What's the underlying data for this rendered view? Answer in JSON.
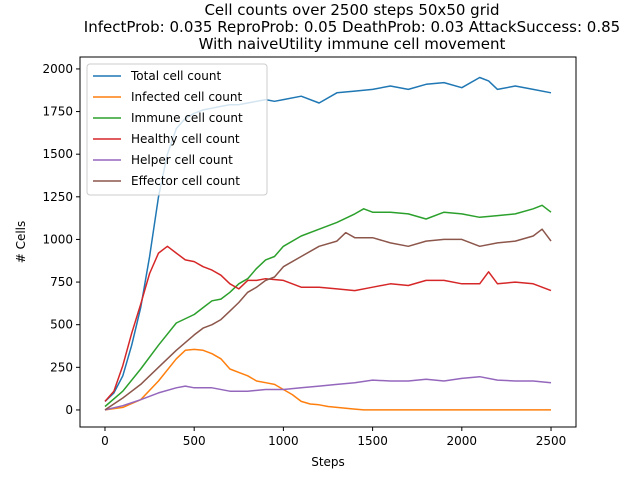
{
  "chart_data": {
    "type": "line",
    "title_lines": [
      "Cell counts over 2500 steps 50x50 grid",
      "InfectProb: 0.035 ReproProb: 0.05 DeathProb: 0.03 AttackSuccess: 0.85",
      "With naiveUtility immune cell movement"
    ],
    "xlabel": "Steps",
    "ylabel": "# Cells",
    "xlim": [
      -140,
      2640
    ],
    "ylim": [
      -100,
      2070
    ],
    "xticks": [
      0,
      500,
      1000,
      1500,
      2000,
      2500
    ],
    "yticks": [
      0,
      250,
      500,
      750,
      1000,
      1250,
      1500,
      1750,
      2000
    ],
    "grid": false,
    "legend_position": "top-left",
    "series": [
      {
        "name": "Total cell count",
        "color": "#1f77b4",
        "x": [
          0,
          50,
          100,
          150,
          200,
          250,
          300,
          350,
          400,
          450,
          500,
          550,
          600,
          650,
          700,
          750,
          800,
          850,
          900,
          950,
          1000,
          1100,
          1200,
          1300,
          1400,
          1500,
          1600,
          1700,
          1800,
          1900,
          2000,
          2100,
          2150,
          2200,
          2300,
          2400,
          2500
        ],
        "y": [
          50,
          100,
          200,
          380,
          600,
          900,
          1250,
          1500,
          1650,
          1710,
          1740,
          1760,
          1770,
          1780,
          1790,
          1790,
          1800,
          1810,
          1820,
          1810,
          1820,
          1840,
          1800,
          1860,
          1870,
          1880,
          1900,
          1880,
          1910,
          1920,
          1890,
          1950,
          1930,
          1880,
          1900,
          1880,
          1860
        ]
      },
      {
        "name": "Infected cell count",
        "color": "#ff7f0e",
        "x": [
          0,
          100,
          200,
          300,
          400,
          450,
          500,
          550,
          600,
          650,
          700,
          750,
          800,
          850,
          900,
          950,
          1000,
          1050,
          1100,
          1150,
          1200,
          1250,
          1300,
          1350,
          1400,
          1450,
          1500,
          1600,
          2000,
          2500
        ],
        "y": [
          0,
          15,
          60,
          170,
          300,
          350,
          355,
          350,
          330,
          300,
          240,
          220,
          200,
          170,
          160,
          150,
          120,
          90,
          50,
          35,
          30,
          20,
          15,
          10,
          5,
          0,
          0,
          0,
          0,
          0
        ]
      },
      {
        "name": "Immune cell count",
        "color": "#2ca02c",
        "x": [
          0,
          100,
          200,
          300,
          400,
          500,
          550,
          600,
          650,
          700,
          750,
          800,
          850,
          900,
          950,
          1000,
          1100,
          1200,
          1300,
          1400,
          1450,
          1500,
          1600,
          1700,
          1800,
          1900,
          2000,
          2100,
          2200,
          2300,
          2400,
          2450,
          2500
        ],
        "y": [
          20,
          110,
          240,
          380,
          510,
          560,
          600,
          640,
          650,
          690,
          740,
          770,
          830,
          880,
          900,
          960,
          1020,
          1060,
          1100,
          1150,
          1180,
          1160,
          1160,
          1150,
          1120,
          1160,
          1150,
          1130,
          1140,
          1150,
          1180,
          1200,
          1160
        ]
      },
      {
        "name": "Healthy cell count",
        "color": "#d62728",
        "x": [
          0,
          50,
          100,
          150,
          200,
          250,
          300,
          350,
          400,
          450,
          500,
          550,
          600,
          650,
          700,
          750,
          800,
          850,
          900,
          1000,
          1100,
          1200,
          1300,
          1400,
          1500,
          1600,
          1700,
          1800,
          1900,
          2000,
          2100,
          2150,
          2200,
          2300,
          2400,
          2450,
          2500
        ],
        "y": [
          50,
          110,
          260,
          450,
          620,
          800,
          920,
          960,
          920,
          880,
          870,
          840,
          820,
          790,
          740,
          710,
          760,
          760,
          770,
          760,
          720,
          720,
          710,
          700,
          720,
          740,
          730,
          760,
          760,
          740,
          740,
          810,
          740,
          750,
          740,
          720,
          700
        ]
      },
      {
        "name": "Helper cell count",
        "color": "#9467bd",
        "x": [
          0,
          100,
          200,
          300,
          400,
          450,
          500,
          550,
          600,
          700,
          800,
          900,
          1000,
          1100,
          1200,
          1300,
          1400,
          1500,
          1600,
          1700,
          1800,
          1900,
          2000,
          2100,
          2200,
          2300,
          2400,
          2500
        ],
        "y": [
          0,
          25,
          60,
          100,
          130,
          140,
          130,
          130,
          130,
          110,
          110,
          120,
          120,
          130,
          140,
          150,
          160,
          175,
          170,
          170,
          180,
          170,
          185,
          195,
          175,
          170,
          170,
          160
        ]
      },
      {
        "name": "Effector cell count",
        "color": "#8c564b",
        "x": [
          0,
          100,
          200,
          300,
          400,
          500,
          550,
          600,
          650,
          700,
          750,
          800,
          850,
          900,
          950,
          1000,
          1100,
          1200,
          1300,
          1350,
          1400,
          1500,
          1600,
          1700,
          1800,
          1900,
          2000,
          2100,
          2200,
          2300,
          2400,
          2450,
          2500
        ],
        "y": [
          0,
          70,
          150,
          250,
          350,
          440,
          480,
          500,
          530,
          580,
          630,
          690,
          720,
          760,
          780,
          840,
          900,
          960,
          990,
          1040,
          1010,
          1010,
          980,
          960,
          990,
          1000,
          1000,
          960,
          980,
          990,
          1020,
          1060,
          990
        ]
      }
    ]
  }
}
